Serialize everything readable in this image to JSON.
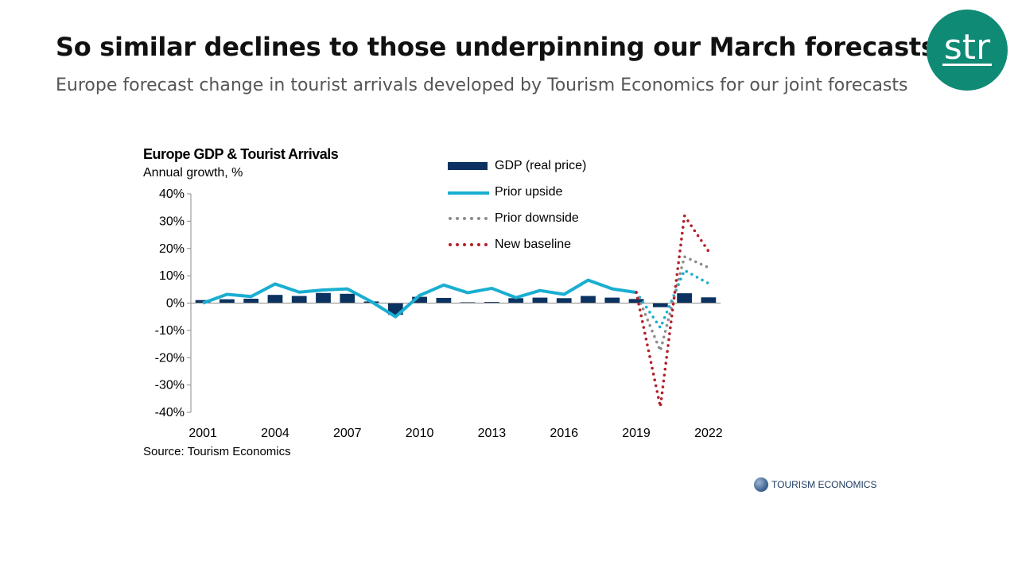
{
  "slide": {
    "title": "So similar declines to those underpinning our March forecasts",
    "subtitle": "Europe forecast change in tourist arrivals developed by Tourism Economics for our joint forecasts",
    "logo_text": "str",
    "brand_color": "#0f8a75"
  },
  "chart_header": {
    "title": "Europe GDP & Tourist Arrivals",
    "subtitle": "Annual growth, %",
    "source": "Source: Tourism Economics"
  },
  "footer_logo": {
    "text": "TOURISM ECONOMICS"
  },
  "legend": {
    "gdp": "GDP (real price)",
    "upside": "Prior upside",
    "downside": "Prior downside",
    "baseline": "New baseline"
  },
  "chart_data": {
    "type": "bar",
    "title": "Europe GDP & Tourist Arrivals",
    "ylabel": "Annual growth, %",
    "ylim": [
      -40,
      40
    ],
    "y_ticks": [
      40,
      30,
      20,
      10,
      0,
      -10,
      -20,
      -30,
      -40
    ],
    "y_tick_labels": [
      "40%",
      "30%",
      "20%",
      "10%",
      "0%",
      "-10%",
      "-20%",
      "-30%",
      "-40%"
    ],
    "x_tick_labels": [
      "2001",
      "2004",
      "2007",
      "2010",
      "2013",
      "2016",
      "2019",
      "2022"
    ],
    "categories": [
      2001,
      2002,
      2003,
      2004,
      2005,
      2006,
      2007,
      2008,
      2009,
      2010,
      2011,
      2012,
      2013,
      2014,
      2015,
      2016,
      2017,
      2018,
      2019,
      2020,
      2021,
      2022
    ],
    "series": [
      {
        "name": "GDP (real price)",
        "kind": "bar",
        "color": "#0b3260",
        "x": [
          2001,
          2002,
          2003,
          2004,
          2005,
          2006,
          2007,
          2008,
          2009,
          2010,
          2011,
          2012,
          2013,
          2014,
          2015,
          2016,
          2017,
          2018,
          2019,
          2020,
          2021,
          2022
        ],
        "values": [
          1.1,
          1.4,
          1.6,
          3.0,
          2.6,
          3.7,
          3.4,
          0.6,
          -4.3,
          2.3,
          1.9,
          0.3,
          0.4,
          1.8,
          2.0,
          1.8,
          2.6,
          2.0,
          1.5,
          -1.5,
          3.6,
          2.1
        ]
      },
      {
        "name": "Prior upside",
        "kind": "line",
        "color": "#1aaed1",
        "x": [
          2001,
          2002,
          2003,
          2004,
          2005,
          2006,
          2007,
          2008,
          2009,
          2010,
          2011,
          2012,
          2013,
          2014,
          2015,
          2016,
          2017,
          2018,
          2019
        ],
        "values": [
          0,
          3.2,
          2.4,
          7.0,
          4.0,
          4.8,
          5.2,
          0.5,
          -5.0,
          2.8,
          6.6,
          3.8,
          5.4,
          2.0,
          4.6,
          3.2,
          8.4,
          5.2,
          3.9
        ]
      },
      {
        "name": "Prior upside forecast",
        "kind": "dotted",
        "color": "#1aaed1",
        "x": [
          2019,
          2020,
          2021,
          2022
        ],
        "values": [
          3.9,
          -9.0,
          12.0,
          7.2
        ]
      },
      {
        "name": "Prior downside",
        "kind": "dotted",
        "color": "#8c8c8c",
        "x": [
          2019,
          2020,
          2021,
          2022
        ],
        "values": [
          3.9,
          -17.5,
          17.0,
          13.0
        ]
      },
      {
        "name": "New baseline",
        "kind": "dotted",
        "color": "#b3202a",
        "x": [
          2019,
          2020,
          2021,
          2022
        ],
        "values": [
          3.9,
          -38.0,
          32.0,
          19.0
        ]
      }
    ],
    "grid": false,
    "legend_position": "top-right"
  }
}
